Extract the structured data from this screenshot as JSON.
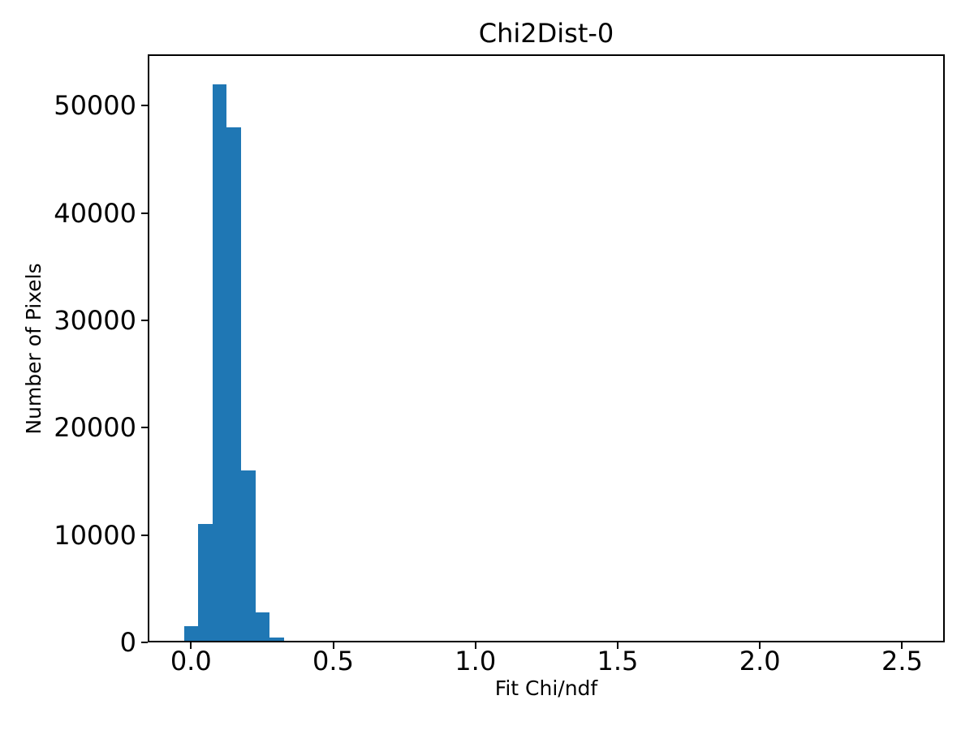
{
  "figure": {
    "background": "#ffffff",
    "axis_color": "#000000",
    "text_color": "#000000"
  },
  "chart_data": {
    "type": "bar",
    "subtype": "histogram",
    "title": "Chi2Dist-0",
    "xlabel": "Fit Chi/ndf",
    "ylabel": "Number of Pixels",
    "bar_color": "#1f77b4",
    "grid": false,
    "legend": null,
    "bin_start": -0.025,
    "bin_width": 0.05,
    "bin_centers": [
      0.0,
      0.05,
      0.1,
      0.15,
      0.2,
      0.25,
      0.3,
      0.35
    ],
    "values": [
      1500,
      11000,
      52000,
      48000,
      16000,
      2800,
      450,
      130
    ],
    "xlim": [
      -0.152,
      2.65
    ],
    "ylim": [
      0,
      54770
    ],
    "x_ticks": {
      "values": [
        0.0,
        0.5,
        1.0,
        1.5,
        2.0,
        2.5
      ],
      "labels": [
        "0.0",
        "0.5",
        "1.0",
        "1.5",
        "2.0",
        "2.5"
      ]
    },
    "y_ticks": {
      "values": [
        0,
        10000,
        20000,
        30000,
        40000,
        50000
      ],
      "labels": [
        "0",
        "10000",
        "20000",
        "30000",
        "40000",
        "50000"
      ]
    }
  }
}
